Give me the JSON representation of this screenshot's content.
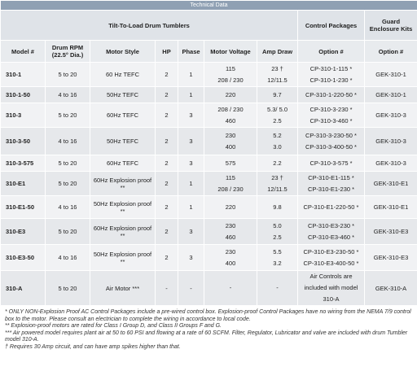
{
  "header": {
    "title": "Technical Data"
  },
  "groups": [
    "Tilt-To-Load Drum Tumblers",
    "Control Packages",
    "Guard Enclosure Kits"
  ],
  "columns": [
    "Model #",
    "Drum RPM (22.5° Dia.)",
    "Motor Style",
    "HP",
    "Phase",
    "Motor Voltage",
    "Amp Draw",
    "Option #",
    "Option #"
  ],
  "table": {
    "rows": [
      [
        "310-1",
        "5 to 20",
        "60 Hz TEFC",
        "2",
        "1",
        [
          "115",
          "208 / 230"
        ],
        [
          "23 †",
          "12/11.5"
        ],
        [
          "CP-310-1-115 *",
          "CP-310-1-230 *"
        ],
        "GEK-310-1"
      ],
      [
        "310-1-50",
        "4 to 16",
        "50Hz TEFC",
        "2",
        "1",
        [
          "220"
        ],
        [
          "9.7"
        ],
        [
          "CP-310-1-220-50 *"
        ],
        "GEK-310-1"
      ],
      [
        "310-3",
        "5 to 20",
        "60Hz TEFC",
        "2",
        "3",
        [
          "208 / 230",
          "460"
        ],
        [
          "5.3/ 5.0",
          "2.5"
        ],
        [
          "CP-310-3-230 *",
          "CP-310-3-460 *"
        ],
        "GEK-310-3"
      ],
      [
        "310-3-50",
        "4 to 16",
        "50Hz TEFC",
        "2",
        "3",
        [
          "230",
          "400"
        ],
        [
          "5.2",
          "3.0"
        ],
        [
          "CP-310-3-230-50 *",
          "CP-310-3-400-50 *"
        ],
        "GEK-310-3"
      ],
      [
        "310-3-575",
        "5 to 20",
        "60Hz TEFC",
        "2",
        "3",
        [
          "575"
        ],
        [
          "2.2"
        ],
        [
          "CP-310-3-575 *"
        ],
        "GEK-310-3"
      ],
      [
        "310-E1",
        "5 to 20",
        "60Hz Explosion proof **",
        "2",
        "1",
        [
          "115",
          "208 / 230"
        ],
        [
          "23 †",
          "12/11.5"
        ],
        [
          "CP-310-E1-115 *",
          "CP-310-E1-230 *"
        ],
        "GEK-310-E1"
      ],
      [
        "310-E1-50",
        "4 to 16",
        "50Hz Explosion proof **",
        "2",
        "1",
        [
          "220"
        ],
        [
          "9.8"
        ],
        [
          "CP-310-E1-220-50 *"
        ],
        "GEK-310-E1"
      ],
      [
        "310-E3",
        "5 to 20",
        "60Hz Explosion proof **",
        "2",
        "3",
        [
          "230",
          "460"
        ],
        [
          "5.0",
          "2.5"
        ],
        [
          "CP-310-E3-230 *",
          "CP-310-E3-460 *"
        ],
        "GEK-310-E3"
      ],
      [
        "310-E3-50",
        "4 to 16",
        "50Hz Explosion proof **",
        "2",
        "3",
        [
          "230",
          "400"
        ],
        [
          "5.5",
          "3.2"
        ],
        [
          "CP-310-E3-230-50 *",
          "CP-310-E3-400-50 *"
        ],
        "GEK-310-E3"
      ],
      [
        "310-A",
        "5 to 20",
        "Air Motor ***",
        "-",
        "-",
        [
          "-"
        ],
        [
          "-"
        ],
        [
          "Air Controls are included with model 310-A"
        ],
        "GEK-310-A"
      ]
    ]
  },
  "footnotes": [
    "* ONLY NON-Explosion Proof AC Control Packages include a pre-wired control box. Explosion-proof Control Packages have no wiring from the NEMA 7/9 control box to the motor. Please consult an electrician to complete the wiring in accordance to local code.",
    "** Explosion-proof motors are rated for Class I Group D, and Class II Groups F and G.",
    "*** Air powered model requires plant air at 50 to 60 PSI and flowing at a rate of 60 SCFM. Filter, Regulator, Lubricator and valve are included with drum Tumbler model 310-A.",
    "† Requires 30 Amp circuit, and can have amp spikes higher than that."
  ]
}
